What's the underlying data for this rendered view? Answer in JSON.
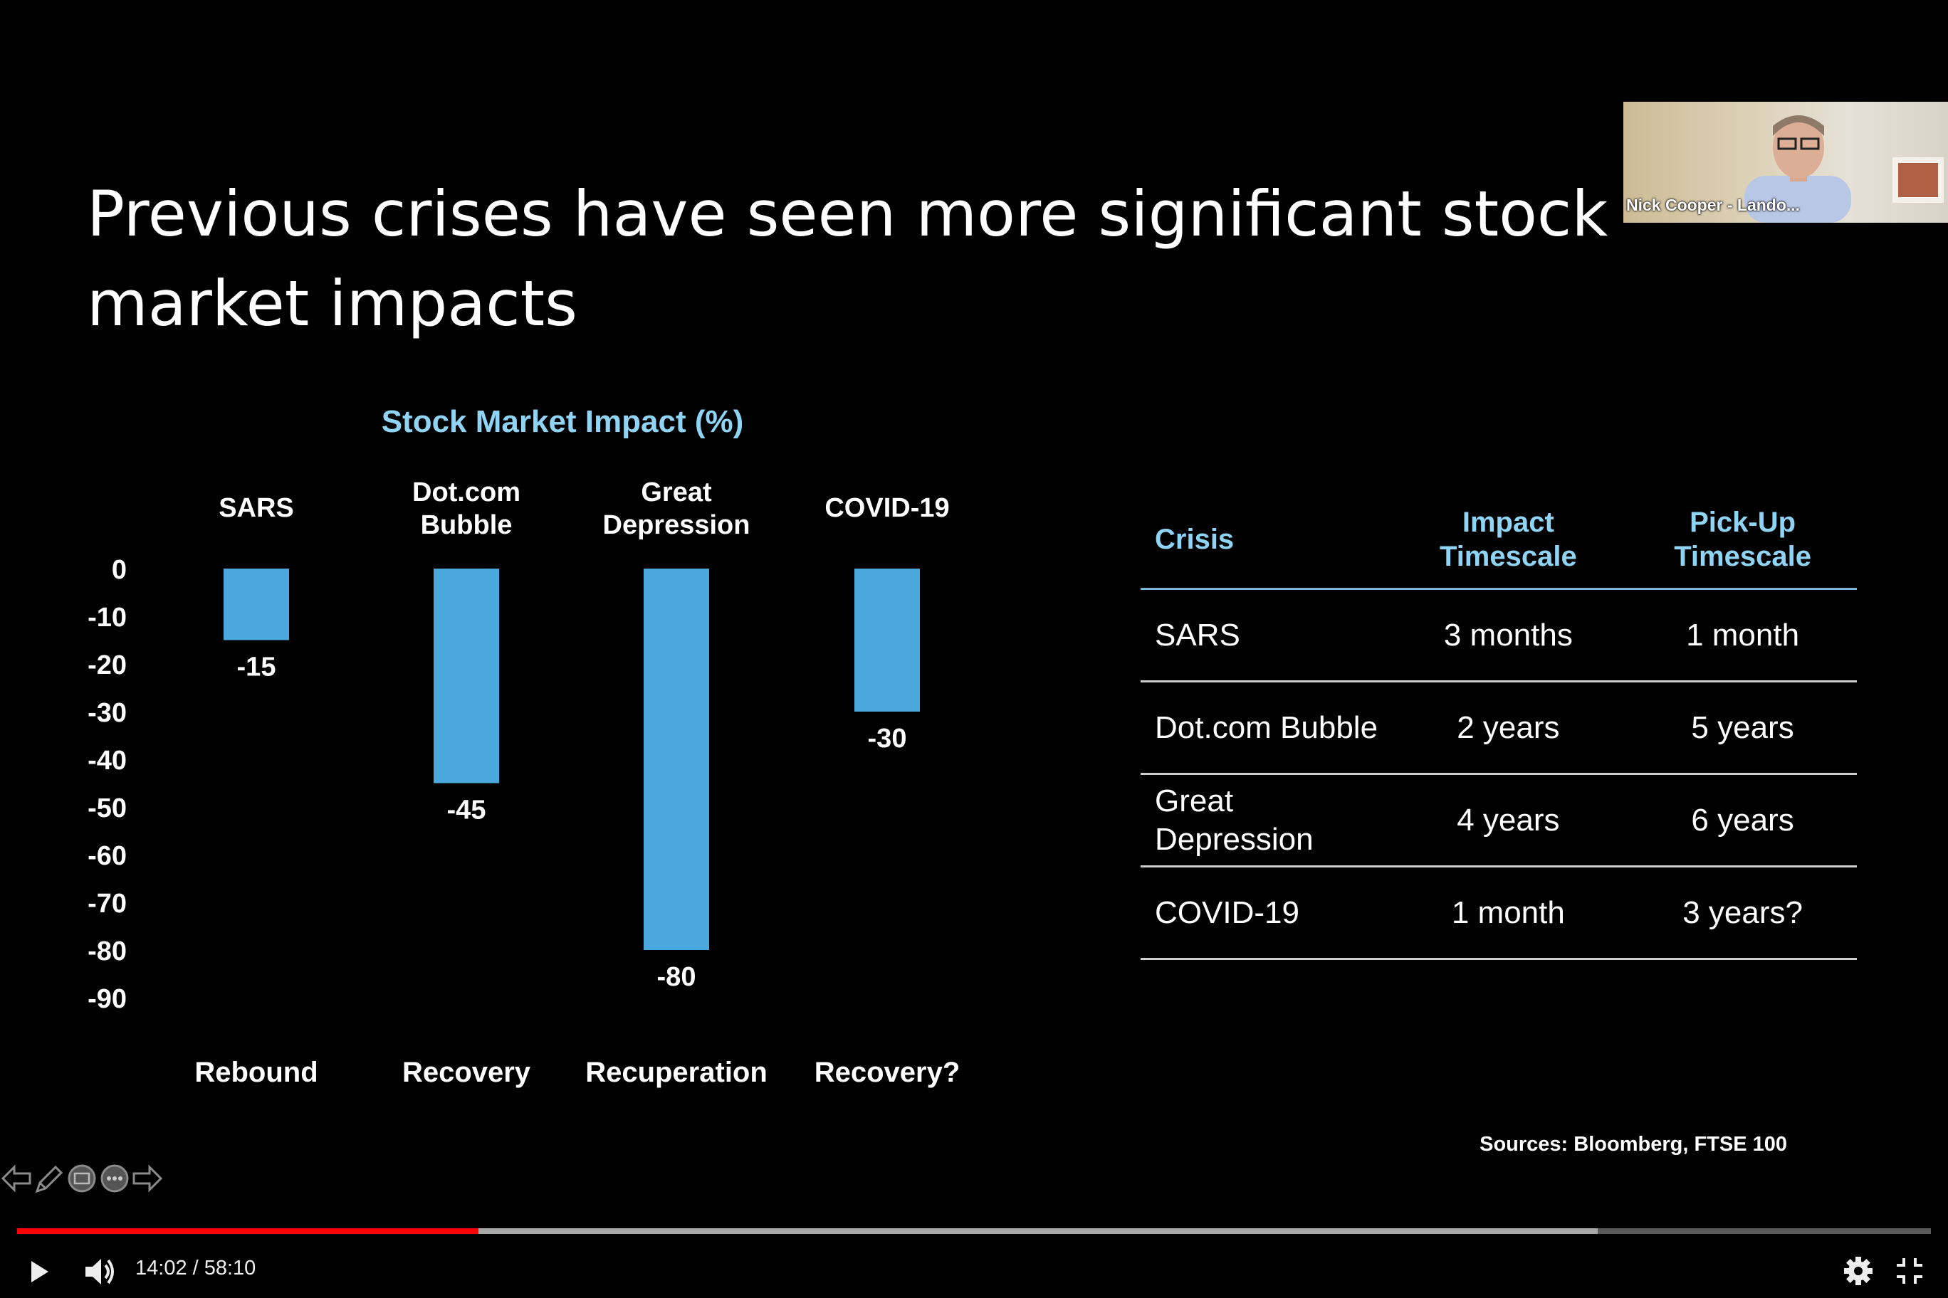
{
  "slide": {
    "title": "Previous crises have seen more significant stock market impacts",
    "sources": "Sources: Bloomberg, FTSE 100"
  },
  "chart_data": {
    "type": "bar",
    "title": "Stock Market Impact (%)",
    "categories": [
      "SARS",
      "Dot.com Bubble",
      "Great Depression",
      "COVID-19"
    ],
    "values": [
      -15,
      -45,
      -80,
      -30
    ],
    "value_labels": [
      "-15",
      "-45",
      "-80",
      "-30"
    ],
    "bottom_labels": [
      "Rebound",
      "Recovery",
      "Recuperation",
      "Recovery?"
    ],
    "yticks": [
      "0",
      "-10",
      "-20",
      "-30",
      "-40",
      "-50",
      "-60",
      "-70",
      "-80",
      "-90"
    ],
    "ylim": [
      -90,
      0
    ],
    "bar_color": "#4aa8dd",
    "grid": false
  },
  "table": {
    "headers": [
      "Crisis",
      "Impact Timescale",
      "Pick-Up Timescale"
    ],
    "rows": [
      [
        "SARS",
        "3 months",
        "1 month"
      ],
      [
        "Dot.com Bubble",
        "2 years",
        "5 years"
      ],
      [
        "Great Depression",
        "4 years",
        "6 years"
      ],
      [
        "COVID-19",
        "1 month",
        "3 years?"
      ]
    ]
  },
  "webcam": {
    "name": "Nick Cooper - Lando..."
  },
  "slide_tools": {
    "icons": [
      "arrow-left-icon",
      "pen-icon",
      "slide-grid-icon",
      "more-options-icon",
      "arrow-right-icon"
    ]
  },
  "player": {
    "current_time": "14:02",
    "duration": "58:10",
    "time_display": "14:02 / 58:10",
    "played_fraction": 0.241,
    "buffered_fraction": 0.826,
    "played_color": "#ff0000"
  }
}
